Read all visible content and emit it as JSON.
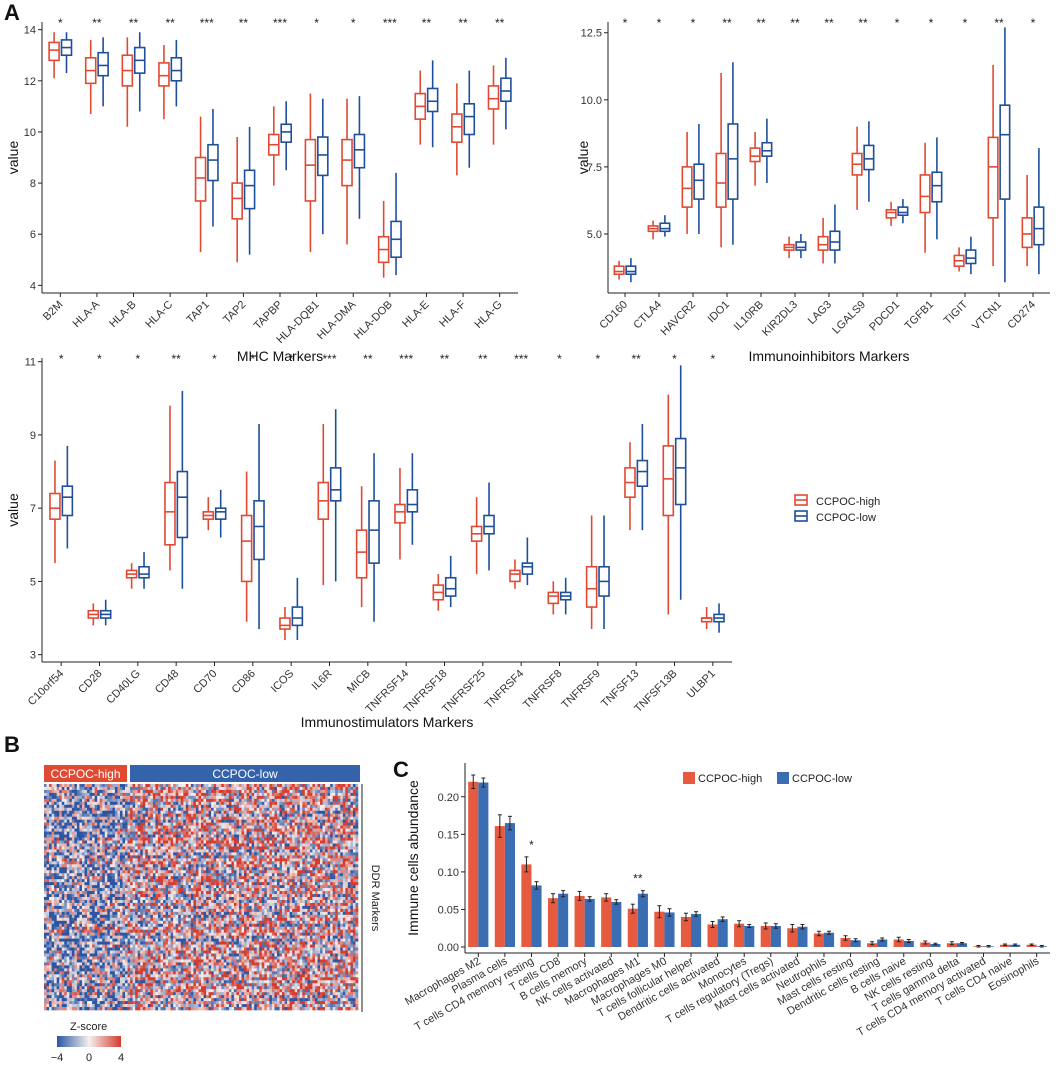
{
  "panel_labels": {
    "a": "A",
    "b": "B",
    "c": "C"
  },
  "colors": {
    "high": "#e04a33",
    "low": "#1e4f9b",
    "bar_high": "#e65b3f",
    "bar_low": "#3b6db3"
  },
  "legend_boxplot": {
    "high": "CCPOC-high",
    "low": "CCPOC-low"
  },
  "heatmap": {
    "high_label": "CCPOC-high",
    "low_label": "CCPOC-low",
    "side_label": "DDR Markers",
    "zscore_title": "Z-score",
    "zscore_ticks": [
      "−4",
      "0",
      "4"
    ]
  },
  "chart_data": [
    {
      "id": "mhc",
      "type": "boxplot",
      "title": "",
      "xlabel": "MHC Markers",
      "ylabel": "value",
      "ylim": [
        3.7,
        14.3
      ],
      "yticks": [
        4,
        6,
        8,
        10,
        12,
        14
      ],
      "series": [
        "CCPOC-high",
        "CCPOC-low"
      ],
      "categories": [
        "B2M",
        "HLA-A",
        "HLA-B",
        "HLA-C",
        "TAP1",
        "TAP2",
        "TAPBP",
        "HLA-DQB1",
        "HLA-DMA",
        "HLA-DOB",
        "HLA-E",
        "HLA-F",
        "HLA-G"
      ],
      "significance": [
        "*",
        "**",
        "**",
        "**",
        "***",
        "**",
        "***",
        "*",
        "*",
        "***",
        "**",
        "**",
        "**"
      ],
      "high": [
        [
          12.1,
          12.8,
          13.2,
          13.5,
          13.9
        ],
        [
          10.7,
          11.9,
          12.4,
          12.9,
          13.6
        ],
        [
          10.2,
          11.8,
          12.4,
          13.0,
          13.7
        ],
        [
          10.5,
          11.8,
          12.2,
          12.7,
          13.4
        ],
        [
          5.3,
          7.3,
          8.2,
          9.0,
          10.6
        ],
        [
          4.9,
          6.6,
          7.4,
          8.0,
          9.8
        ],
        [
          7.9,
          9.1,
          9.5,
          9.9,
          11.0
        ],
        [
          5.3,
          7.3,
          8.7,
          9.7,
          11.5
        ],
        [
          5.6,
          7.9,
          8.9,
          9.7,
          11.3
        ],
        [
          4.3,
          4.9,
          5.4,
          5.9,
          7.3
        ],
        [
          9.5,
          10.5,
          11.0,
          11.5,
          12.4
        ],
        [
          8.3,
          9.6,
          10.2,
          10.7,
          11.9
        ],
        [
          9.5,
          10.9,
          11.3,
          11.8,
          12.6
        ]
      ],
      "low": [
        [
          12.3,
          13.0,
          13.3,
          13.6,
          13.9
        ],
        [
          11.0,
          12.2,
          12.6,
          13.1,
          13.7
        ],
        [
          10.8,
          12.3,
          12.8,
          13.3,
          13.9
        ],
        [
          11.0,
          12.0,
          12.4,
          12.9,
          13.6
        ],
        [
          6.3,
          8.1,
          8.9,
          9.5,
          10.9
        ],
        [
          5.2,
          7.0,
          7.9,
          8.5,
          10.2
        ],
        [
          8.5,
          9.6,
          10.0,
          10.3,
          11.2
        ],
        [
          6.0,
          8.3,
          9.1,
          9.8,
          11.3
        ],
        [
          6.6,
          8.6,
          9.3,
          9.9,
          11.4
        ],
        [
          4.4,
          5.1,
          5.8,
          6.5,
          8.4
        ],
        [
          9.4,
          10.8,
          11.2,
          11.7,
          12.8
        ],
        [
          8.6,
          9.9,
          10.6,
          11.1,
          12.4
        ],
        [
          10.1,
          11.2,
          11.6,
          12.1,
          12.9
        ]
      ]
    },
    {
      "id": "inhib",
      "type": "boxplot",
      "title": "",
      "xlabel": "Immunoinhibitors Markers",
      "ylabel": "value",
      "ylim": [
        2.8,
        12.9
      ],
      "yticks": [
        5.0,
        7.5,
        10.0,
        12.5
      ],
      "ytick_labels": [
        "5.0",
        "7.5",
        "10.0",
        "12.5"
      ],
      "series": [
        "CCPOC-high",
        "CCPOC-low"
      ],
      "categories": [
        "CD160",
        "CTLA4",
        "HAVCR2",
        "IDO1",
        "IL10RB",
        "KIR2DL3",
        "LAG3",
        "LGALS9",
        "PDCD1",
        "TGFB1",
        "TIGIT",
        "VTCN1",
        "CD274"
      ],
      "significance": [
        "*",
        "*",
        "*",
        "**",
        "**",
        "**",
        "**",
        "**",
        "*",
        "*",
        "*",
        "**",
        "*"
      ],
      "high": [
        [
          3.3,
          3.5,
          3.6,
          3.8,
          4.0
        ],
        [
          4.8,
          5.1,
          5.2,
          5.3,
          5.5
        ],
        [
          5.0,
          6.0,
          6.7,
          7.5,
          8.8
        ],
        [
          4.5,
          6.0,
          6.9,
          8.0,
          11.0
        ],
        [
          6.8,
          7.7,
          7.9,
          8.2,
          8.8
        ],
        [
          4.1,
          4.4,
          4.5,
          4.6,
          4.9
        ],
        [
          3.9,
          4.4,
          4.6,
          4.9,
          5.6
        ],
        [
          5.9,
          7.2,
          7.6,
          8.0,
          9.0
        ],
        [
          5.3,
          5.6,
          5.8,
          5.9,
          6.2
        ],
        [
          4.3,
          5.8,
          6.4,
          7.2,
          8.4
        ],
        [
          3.6,
          3.8,
          4.0,
          4.2,
          4.5
        ],
        [
          3.8,
          5.6,
          7.5,
          8.6,
          11.3
        ],
        [
          3.8,
          4.5,
          5.0,
          5.6,
          7.2
        ]
      ],
      "low": [
        [
          3.2,
          3.5,
          3.6,
          3.8,
          4.1
        ],
        [
          4.9,
          5.1,
          5.2,
          5.4,
          5.7
        ],
        [
          5.0,
          6.3,
          7.0,
          7.6,
          9.1
        ],
        [
          4.6,
          6.3,
          7.8,
          9.1,
          11.4
        ],
        [
          6.9,
          7.9,
          8.1,
          8.4,
          9.3
        ],
        [
          4.1,
          4.4,
          4.5,
          4.7,
          5.0
        ],
        [
          3.9,
          4.4,
          4.7,
          5.1,
          6.1
        ],
        [
          6.2,
          7.4,
          7.8,
          8.3,
          9.2
        ],
        [
          5.4,
          5.7,
          5.8,
          6.0,
          6.3
        ],
        [
          4.8,
          6.2,
          6.8,
          7.3,
          8.6
        ],
        [
          3.5,
          3.9,
          4.1,
          4.4,
          4.9
        ],
        [
          3.2,
          6.3,
          8.7,
          9.8,
          12.7
        ],
        [
          3.5,
          4.6,
          5.2,
          6.0,
          8.2
        ]
      ]
    },
    {
      "id": "stim",
      "type": "boxplot",
      "title": "",
      "xlabel": "Immunostimulators Markers",
      "ylabel": "value",
      "ylim": [
        2.8,
        11.1
      ],
      "yticks": [
        3,
        5,
        7,
        9,
        11
      ],
      "series": [
        "CCPOC-high",
        "CCPOC-low"
      ],
      "categories": [
        "C10orf54",
        "CD28",
        "CD40LG",
        "CD48",
        "CD70",
        "CD86",
        "ICOS",
        "IL6R",
        "MICB",
        "TNFRSF14",
        "TNFRSF18",
        "TNFRSF25",
        "TNFRSF4",
        "TNFRSF8",
        "TNFRSF9",
        "TNFSF13",
        "TNFSF13B",
        "ULBP1"
      ],
      "significance": [
        "*",
        "*",
        "*",
        "**",
        "*",
        "*",
        "*",
        "***",
        "**",
        "***",
        "**",
        "**",
        "***",
        "*",
        "*",
        "**",
        "*",
        "*"
      ],
      "high": [
        [
          5.5,
          6.7,
          7.0,
          7.4,
          8.3
        ],
        [
          3.8,
          4.0,
          4.1,
          4.2,
          4.4
        ],
        [
          4.8,
          5.1,
          5.2,
          5.3,
          5.5
        ],
        [
          5.3,
          6.0,
          6.9,
          7.7,
          9.8
        ],
        [
          6.4,
          6.7,
          6.8,
          6.9,
          7.3
        ],
        [
          3.9,
          5.0,
          6.1,
          6.8,
          8.0
        ],
        [
          3.4,
          3.7,
          3.8,
          4.0,
          4.3
        ],
        [
          4.9,
          6.7,
          7.2,
          7.7,
          9.3
        ],
        [
          4.3,
          5.1,
          5.8,
          6.4,
          7.6
        ],
        [
          5.6,
          6.6,
          6.9,
          7.1,
          8.1
        ],
        [
          4.2,
          4.5,
          4.7,
          4.9,
          5.2
        ],
        [
          5.2,
          6.1,
          6.3,
          6.5,
          7.3
        ],
        [
          4.8,
          5.0,
          5.2,
          5.3,
          5.6
        ],
        [
          4.1,
          4.4,
          4.6,
          4.7,
          5.0
        ],
        [
          3.7,
          4.3,
          4.8,
          5.4,
          6.8
        ],
        [
          6.4,
          7.3,
          7.7,
          8.1,
          8.8
        ],
        [
          4.1,
          6.8,
          7.8,
          8.7,
          10.1
        ],
        [
          3.7,
          3.9,
          4.0,
          4.0,
          4.3
        ]
      ],
      "low": [
        [
          5.9,
          6.8,
          7.3,
          7.6,
          8.7
        ],
        [
          3.8,
          4.0,
          4.1,
          4.2,
          4.5
        ],
        [
          4.8,
          5.1,
          5.2,
          5.4,
          5.8
        ],
        [
          4.8,
          6.2,
          7.3,
          8.0,
          10.2
        ],
        [
          6.2,
          6.7,
          6.9,
          7.0,
          7.5
        ],
        [
          3.7,
          5.6,
          6.5,
          7.2,
          9.3
        ],
        [
          3.4,
          3.8,
          4.0,
          4.3,
          5.1
        ],
        [
          5.0,
          7.2,
          7.5,
          8.1,
          9.7
        ],
        [
          3.9,
          5.5,
          6.4,
          7.2,
          8.5
        ],
        [
          6.0,
          6.9,
          7.1,
          7.5,
          8.5
        ],
        [
          4.3,
          4.6,
          4.8,
          5.1,
          5.7
        ],
        [
          5.3,
          6.3,
          6.5,
          6.8,
          7.7
        ],
        [
          4.9,
          5.2,
          5.4,
          5.5,
          6.2
        ],
        [
          4.1,
          4.5,
          4.6,
          4.7,
          5.1
        ],
        [
          3.7,
          4.6,
          5.0,
          5.4,
          6.8
        ],
        [
          6.4,
          7.6,
          8.0,
          8.3,
          9.3
        ],
        [
          4.5,
          7.1,
          8.1,
          8.9,
          10.9
        ],
        [
          3.6,
          3.9,
          4.0,
          4.1,
          4.4
        ]
      ]
    },
    {
      "id": "immune",
      "type": "bar",
      "title": "",
      "xlabel": "",
      "ylabel": "Immune cells abundance",
      "ylim": [
        -0.008,
        0.245
      ],
      "yticks": [
        0.0,
        0.05,
        0.1,
        0.15,
        0.2
      ],
      "ytick_labels": [
        "0.00",
        "0.05",
        "0.10",
        "0.15",
        "0.20"
      ],
      "legend": [
        "CCPOC-high",
        "CCPOC-low"
      ],
      "categories": [
        "Macrophages M2",
        "Plasma cells",
        "T cells CD4 memory resting",
        "T cells CD8",
        "B cells memory",
        "NK cells activated",
        "Macrophages M1",
        "Macrophages M0",
        "T cells follicular helper",
        "Dendritic cells activated",
        "Monocytes",
        "T cells regulatory (Tregs)",
        "Mast cells activated",
        "Neutrophils",
        "Mast cells resting",
        "Dendritic cells resting",
        "B cells naive",
        "NK cells resting",
        "T cells gamma delta",
        "T cells CD4 memory activated",
        "T cells CD4 naive",
        "Eosinophils"
      ],
      "series": [
        {
          "name": "CCPOC-high",
          "values": [
            0.22,
            0.161,
            0.11,
            0.065,
            0.068,
            0.066,
            0.051,
            0.047,
            0.04,
            0.03,
            0.031,
            0.028,
            0.025,
            0.018,
            0.012,
            0.005,
            0.01,
            0.006,
            0.005,
            0.001,
            0.003,
            0.003
          ],
          "errors": [
            0.009,
            0.015,
            0.01,
            0.006,
            0.006,
            0.005,
            0.006,
            0.008,
            0.005,
            0.004,
            0.004,
            0.004,
            0.005,
            0.003,
            0.003,
            0.002,
            0.003,
            0.002,
            0.002,
            0.001,
            0.001,
            0.001
          ]
        },
        {
          "name": "CCPOC-low",
          "values": [
            0.219,
            0.165,
            0.082,
            0.071,
            0.064,
            0.06,
            0.071,
            0.046,
            0.044,
            0.037,
            0.028,
            0.028,
            0.027,
            0.019,
            0.009,
            0.01,
            0.008,
            0.004,
            0.005,
            0.001,
            0.003,
            0.001
          ],
          "errors": [
            0.006,
            0.009,
            0.005,
            0.004,
            0.003,
            0.003,
            0.004,
            0.005,
            0.003,
            0.003,
            0.002,
            0.003,
            0.003,
            0.002,
            0.002,
            0.002,
            0.002,
            0.001,
            0.001,
            0.001,
            0.001,
            0.001
          ]
        }
      ],
      "annotations": [
        {
          "category_index": 2,
          "text": "*"
        },
        {
          "category_index": 6,
          "text": "**"
        }
      ]
    }
  ]
}
